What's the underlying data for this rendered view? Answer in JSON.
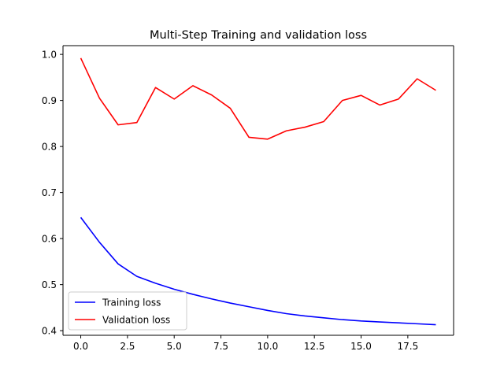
{
  "chart_data": {
    "type": "line",
    "title": "Multi-Step Training and validation loss",
    "xlabel": "",
    "ylabel": "",
    "x": [
      0,
      1,
      2,
      3,
      4,
      5,
      6,
      7,
      8,
      9,
      10,
      11,
      12,
      13,
      14,
      15,
      16,
      17,
      18,
      19
    ],
    "xlim": [
      -0.95,
      19.95
    ],
    "ylim": [
      0.39,
      1.019
    ],
    "xticks": [
      0.0,
      2.5,
      5.0,
      7.5,
      10.0,
      12.5,
      15.0,
      17.5
    ],
    "xtick_labels": [
      "0.0",
      "2.5",
      "5.0",
      "7.5",
      "10.0",
      "12.5",
      "15.0",
      "17.5"
    ],
    "yticks": [
      0.4,
      0.5,
      0.6,
      0.7,
      0.8,
      0.9,
      1.0
    ],
    "ytick_labels": [
      "0.4",
      "0.5",
      "0.6",
      "0.7",
      "0.8",
      "0.9",
      "1.0"
    ],
    "grid": false,
    "legend_position": "lower-left",
    "series": [
      {
        "name": "Training loss",
        "color": "#0000ff",
        "values": [
          0.646,
          0.592,
          0.545,
          0.518,
          0.503,
          0.49,
          0.479,
          0.469,
          0.46,
          0.452,
          0.444,
          0.437,
          0.432,
          0.428,
          0.424,
          0.421,
          0.419,
          0.417,
          0.415,
          0.413
        ]
      },
      {
        "name": "Validation loss",
        "color": "#ff0000",
        "values": [
          0.992,
          0.905,
          0.847,
          0.852,
          0.928,
          0.903,
          0.932,
          0.912,
          0.883,
          0.82,
          0.816,
          0.834,
          0.842,
          0.854,
          0.9,
          0.911,
          0.89,
          0.903,
          0.947,
          0.922
        ]
      }
    ]
  }
}
